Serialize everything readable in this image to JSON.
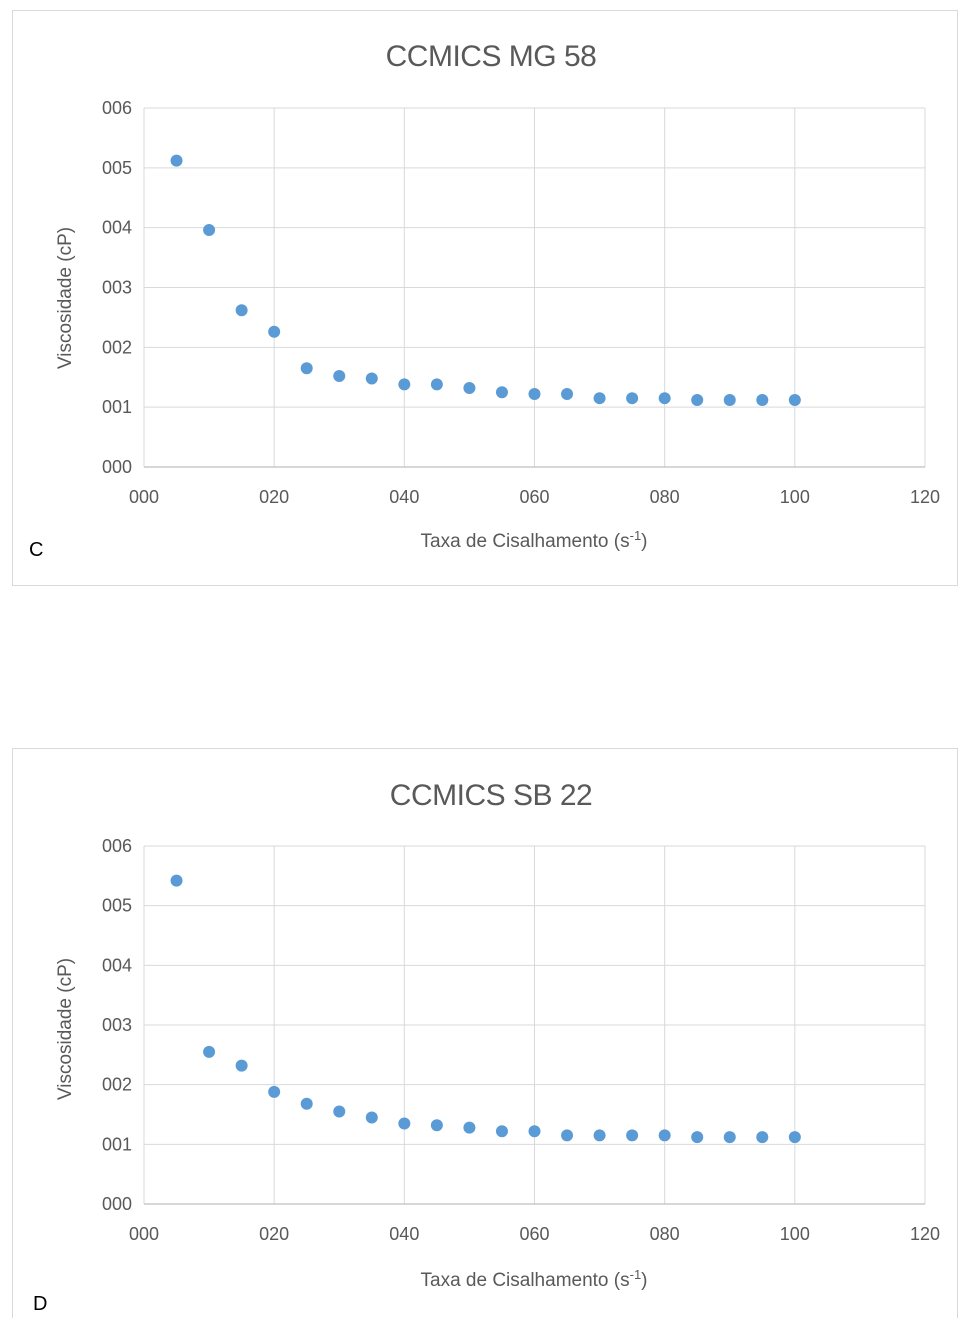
{
  "colors": {
    "marker": "#5b9bd5",
    "grid": "#d9d9d9",
    "text": "#595959",
    "border": "#d9d9d9"
  },
  "chart_data": [
    {
      "type": "scatter",
      "panel_label": "C",
      "title": "CCMICS MG 58",
      "xlabel": "Taxa de Cisalhamento (s",
      "xlabel_sup": "-1",
      "xlabel_close": ")",
      "ylabel": "Viscosidade (cP)",
      "xlim": [
        0,
        120
      ],
      "ylim": [
        0,
        6
      ],
      "xticks": [
        "000",
        "020",
        "040",
        "060",
        "080",
        "100",
        "120"
      ],
      "yticks": [
        "000",
        "001",
        "002",
        "003",
        "004",
        "005",
        "006"
      ],
      "grid": true,
      "x": [
        5,
        10,
        15,
        20,
        25,
        30,
        35,
        40,
        45,
        50,
        55,
        60,
        65,
        70,
        75,
        80,
        85,
        90,
        95,
        100
      ],
      "y": [
        5.12,
        3.96,
        2.62,
        2.26,
        1.65,
        1.52,
        1.48,
        1.38,
        1.38,
        1.32,
        1.25,
        1.22,
        1.22,
        1.15,
        1.15,
        1.15,
        1.12,
        1.12,
        1.12,
        1.12
      ]
    },
    {
      "type": "scatter",
      "panel_label": "D",
      "title": "CCMICS SB 22",
      "xlabel": "Taxa de Cisalhamento (s",
      "xlabel_sup": "-1",
      "xlabel_close": ")",
      "ylabel": "Viscosidade (cP)",
      "xlim": [
        0,
        120
      ],
      "ylim": [
        0,
        6
      ],
      "xticks": [
        "000",
        "020",
        "040",
        "060",
        "080",
        "100",
        "120"
      ],
      "yticks": [
        "000",
        "001",
        "002",
        "003",
        "004",
        "005",
        "006"
      ],
      "grid": true,
      "x": [
        5,
        10,
        15,
        20,
        25,
        30,
        35,
        40,
        45,
        50,
        55,
        60,
        65,
        70,
        75,
        80,
        85,
        90,
        95,
        100
      ],
      "y": [
        5.42,
        2.55,
        2.32,
        1.88,
        1.68,
        1.55,
        1.45,
        1.35,
        1.32,
        1.28,
        1.22,
        1.22,
        1.15,
        1.15,
        1.15,
        1.15,
        1.12,
        1.12,
        1.12,
        1.12
      ]
    }
  ]
}
